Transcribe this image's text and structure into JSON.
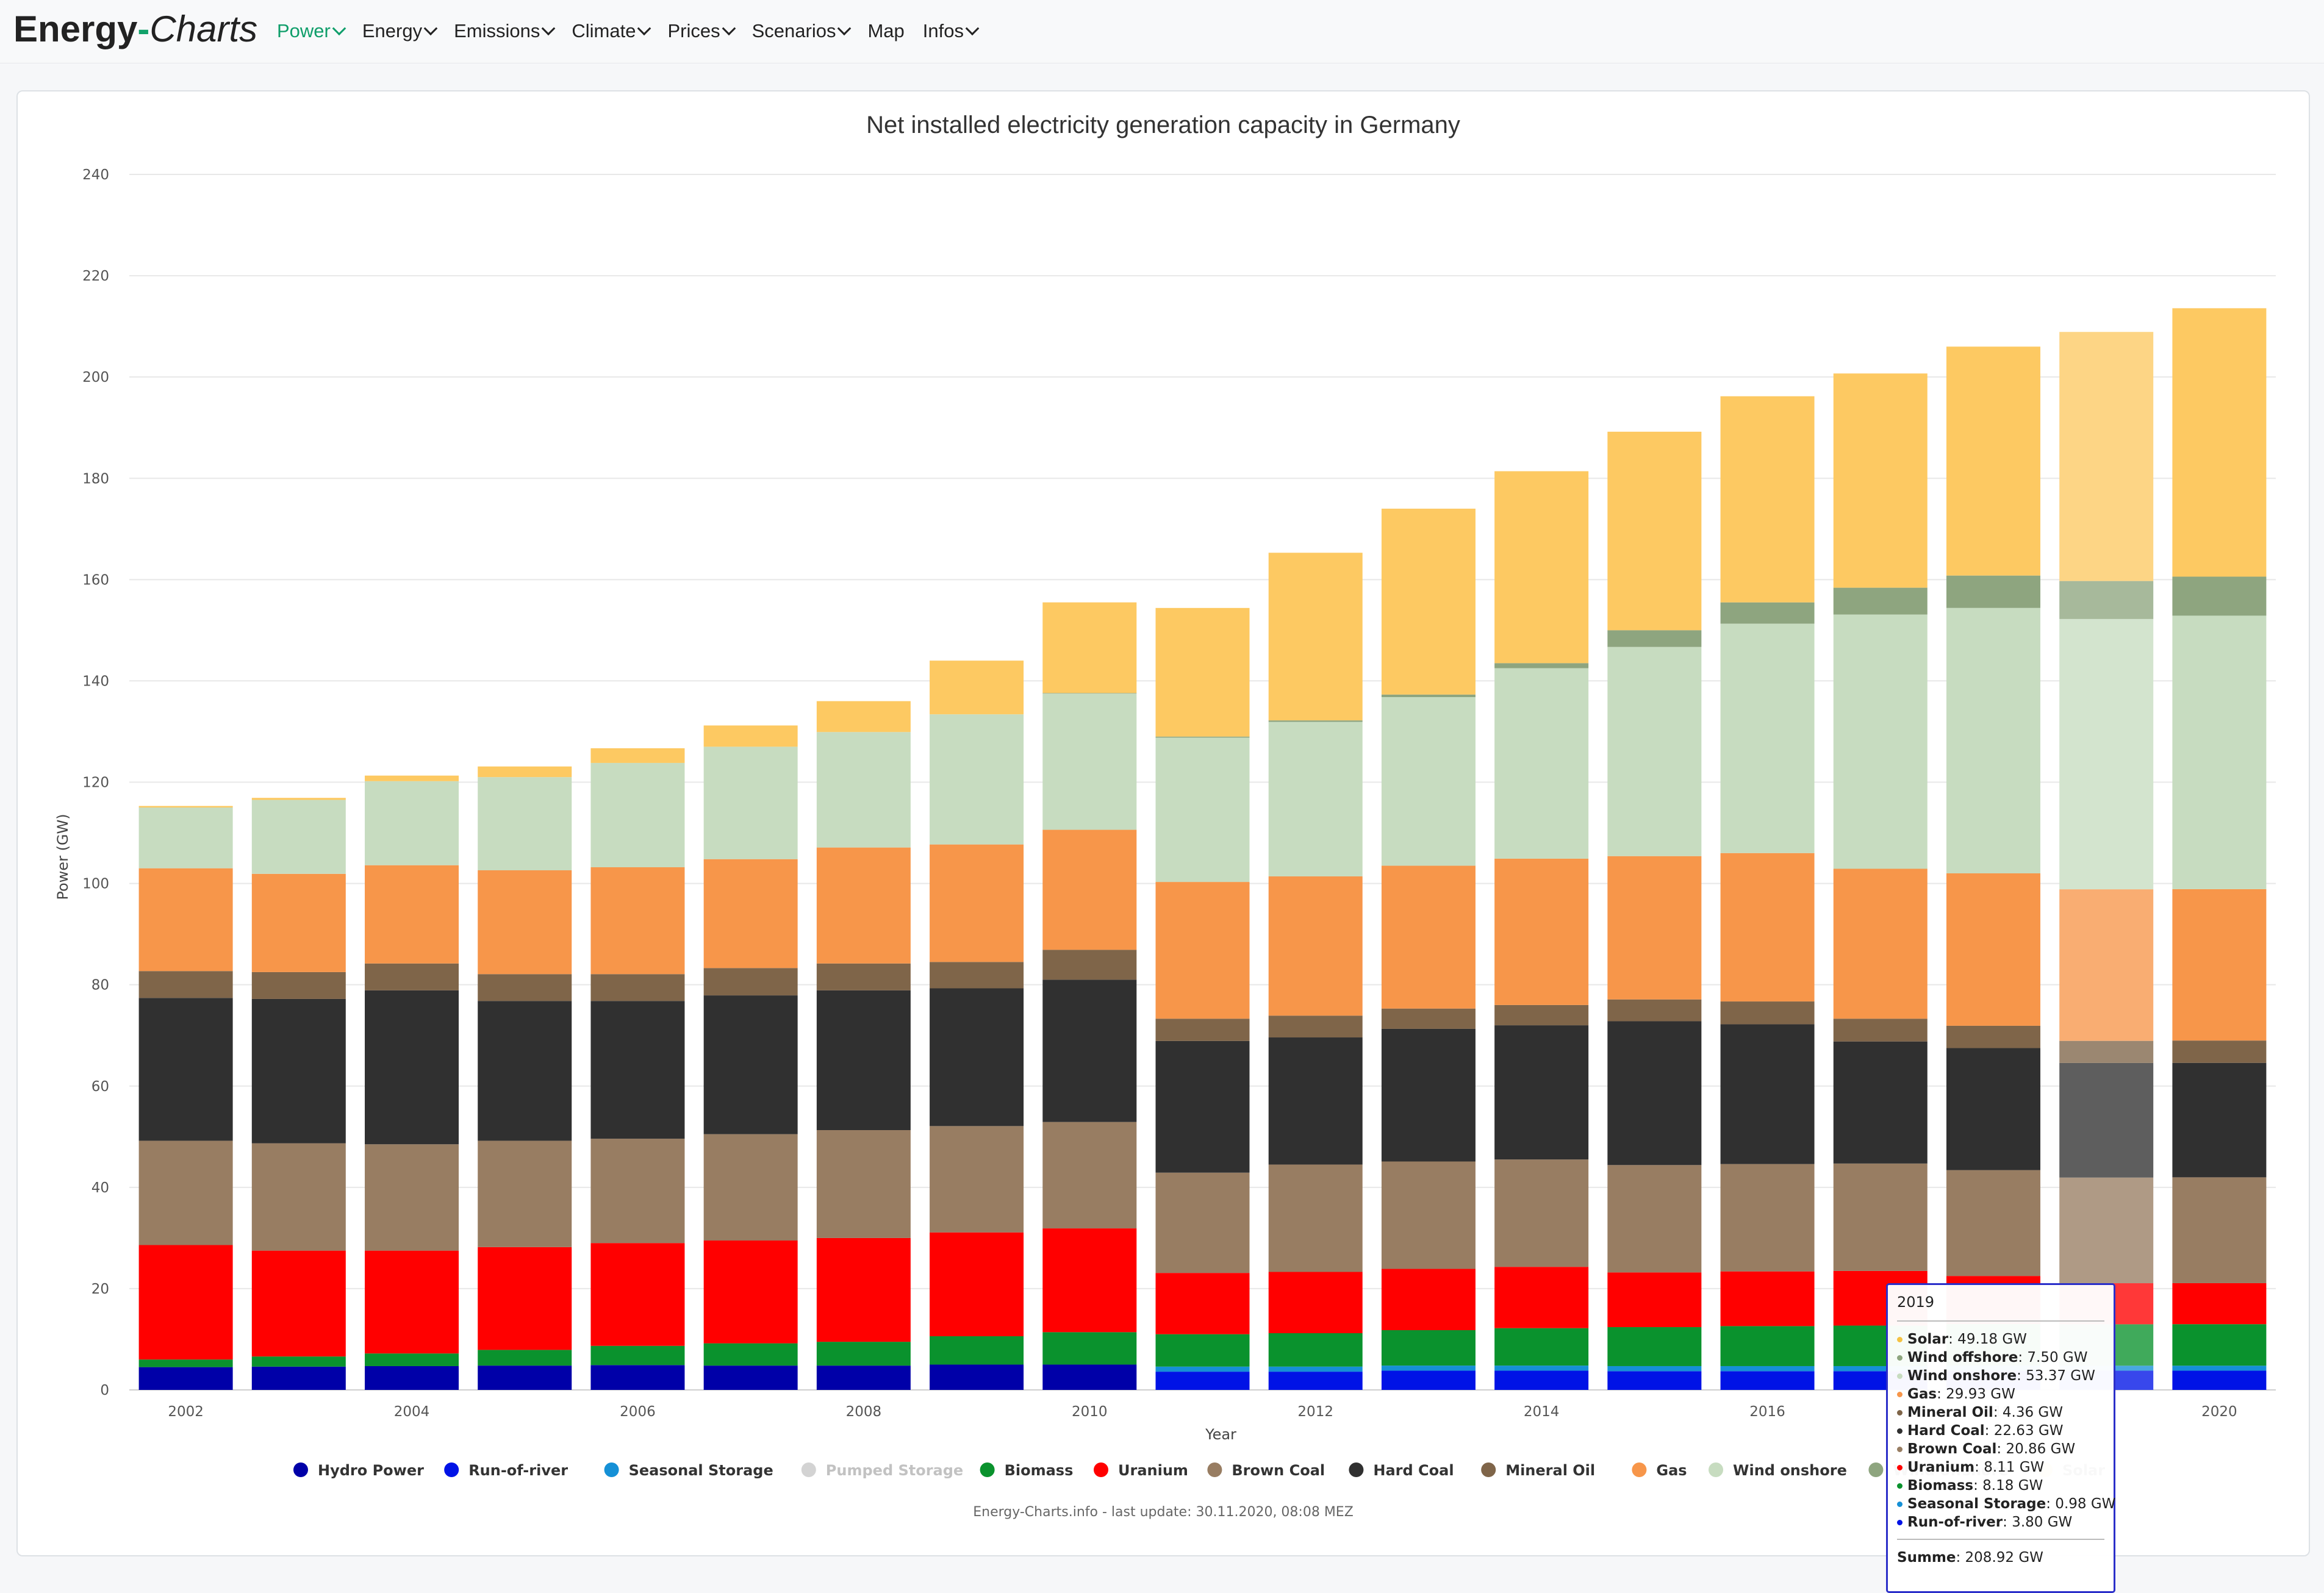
{
  "navbar": {
    "logo_energy": "Energy",
    "logo_dash": "-",
    "logo_charts": "Charts",
    "items": [
      {
        "label": "Power",
        "active": true
      },
      {
        "label": "Energy"
      },
      {
        "label": "Emissions"
      },
      {
        "label": "Climate"
      },
      {
        "label": "Prices"
      },
      {
        "label": "Scenarios"
      },
      {
        "label": "Map",
        "nochev": true
      },
      {
        "label": "Infos"
      }
    ]
  },
  "footer": "Energy-Charts.info - last update: 30.11.2020, 08:08 MEZ",
  "tooltip": {
    "year": "2019",
    "rows": [
      {
        "label": "Solar",
        "value": ": 49.18 GW",
        "color": "#f5c242"
      },
      {
        "label": "Wind offshore",
        "value": ": 7.50 GW",
        "color": "#8ea57f"
      },
      {
        "label": "Wind onshore",
        "value": ": 53.37 GW",
        "color": "#c7dcc0"
      },
      {
        "label": "Gas",
        "value": ": 29.93 GW",
        "color": "#f7964a"
      },
      {
        "label": "Mineral Oil",
        "value": ": 4.36 GW",
        "color": "#7f6549"
      },
      {
        "label": "Hard Coal",
        "value": ": 22.63 GW",
        "color": "#303030"
      },
      {
        "label": "Brown Coal",
        "value": ": 20.86 GW",
        "color": "#987d62"
      },
      {
        "label": "Uranium",
        "value": ": 8.11 GW",
        "color": "#ff0000"
      },
      {
        "label": "Biomass",
        "value": ": 8.18 GW",
        "color": "#0a922d"
      },
      {
        "label": "Seasonal Storage",
        "value": ": 0.98 GW",
        "color": "#1590d6"
      },
      {
        "label": "Run-of-river",
        "value": ": 3.80 GW",
        "color": "#0013e6"
      }
    ],
    "sum_label": "Summe",
    "sum_value": ": 208.92 GW"
  },
  "chart_data": {
    "type": "bar",
    "stacked": true,
    "title": "Net installed electricity generation capacity in Germany",
    "xlabel": "Year",
    "ylabel": "Power (GW)",
    "ylim": [
      0,
      240
    ],
    "yticks": [
      0,
      20,
      40,
      60,
      80,
      100,
      120,
      140,
      160,
      180,
      200,
      220,
      240
    ],
    "categories": [
      "2002",
      "2003",
      "2004",
      "2005",
      "2006",
      "2007",
      "2008",
      "2009",
      "2010",
      "2011",
      "2012",
      "2013",
      "2014",
      "2015",
      "2016",
      "2017",
      "2018",
      "2019",
      "2020"
    ],
    "xtick_labels": [
      "2002",
      "",
      "2004",
      "",
      "2006",
      "",
      "2008",
      "",
      "2010",
      "",
      "2012",
      "",
      "2014",
      "",
      "2016",
      "",
      "2018",
      "",
      "2020"
    ],
    "highlight_index": 17,
    "series": [
      {
        "name": "Hydro Power",
        "color": "#0000a8",
        "values": [
          4.5,
          4.6,
          4.7,
          4.8,
          4.9,
          4.8,
          4.8,
          5.0,
          5.0,
          0,
          0,
          0,
          0,
          0,
          0,
          0,
          0,
          0,
          0
        ]
      },
      {
        "name": "Run-of-river",
        "color": "#0013e6",
        "values": [
          0,
          0,
          0,
          0,
          0,
          0,
          0,
          0,
          0,
          3.6,
          3.6,
          3.8,
          3.8,
          3.7,
          3.7,
          3.7,
          3.8,
          3.8,
          3.8
        ]
      },
      {
        "name": "Seasonal Storage",
        "color": "#1590d6",
        "values": [
          0,
          0,
          0,
          0,
          0,
          0,
          0,
          0,
          0,
          1.0,
          1.0,
          1.0,
          1.0,
          1.0,
          1.0,
          1.0,
          1.0,
          0.98,
          0.98
        ]
      },
      {
        "name": "Pumped Storage",
        "color": "#d3d3d3",
        "hidden": true,
        "values": [
          0,
          0,
          0,
          0,
          0,
          0,
          0,
          0,
          0,
          0,
          0,
          0,
          0,
          0,
          0,
          0,
          0,
          0,
          0
        ]
      },
      {
        "name": "Biomass",
        "color": "#0a922d",
        "values": [
          1.5,
          2.0,
          2.5,
          3.1,
          3.8,
          4.4,
          4.7,
          5.6,
          6.4,
          6.4,
          6.6,
          7.0,
          7.4,
          7.7,
          7.9,
          8.0,
          8.2,
          8.18,
          8.2
        ]
      },
      {
        "name": "Uranium",
        "color": "#ff0000",
        "values": [
          22.6,
          20.9,
          20.3,
          20.3,
          20.3,
          20.3,
          20.5,
          20.5,
          20.5,
          12.1,
          12.1,
          12.1,
          12.1,
          10.8,
          10.8,
          10.8,
          9.5,
          8.11,
          8.1
        ]
      },
      {
        "name": "Brown Coal",
        "color": "#987d62",
        "values": [
          20.6,
          21.2,
          21.0,
          21.0,
          20.6,
          21.0,
          21.3,
          21.0,
          21.0,
          19.8,
          21.2,
          21.2,
          21.2,
          21.2,
          21.2,
          21.2,
          20.9,
          20.86,
          20.9
        ]
      },
      {
        "name": "Hard Coal",
        "color": "#303030",
        "values": [
          28.2,
          28.5,
          30.4,
          27.6,
          27.2,
          27.4,
          27.6,
          27.2,
          28.1,
          26.0,
          25.1,
          26.2,
          26.5,
          28.4,
          27.6,
          24.1,
          24.1,
          22.63,
          22.6
        ]
      },
      {
        "name": "Mineral Oil",
        "color": "#7f6549",
        "values": [
          5.3,
          5.3,
          5.3,
          5.3,
          5.3,
          5.4,
          5.3,
          5.2,
          5.9,
          4.4,
          4.3,
          4.0,
          4.0,
          4.3,
          4.5,
          4.5,
          4.4,
          4.36,
          4.4
        ]
      },
      {
        "name": "Gas",
        "color": "#f7964a",
        "values": [
          20.3,
          19.4,
          19.4,
          20.5,
          21.1,
          21.5,
          22.9,
          23.2,
          23.7,
          27.0,
          27.5,
          28.2,
          28.9,
          28.3,
          29.3,
          29.6,
          30.1,
          29.93,
          29.9
        ]
      },
      {
        "name": "Wind onshore",
        "color": "#c7dcc0",
        "values": [
          12.0,
          14.6,
          16.6,
          18.4,
          20.6,
          22.2,
          22.8,
          25.7,
          26.9,
          28.5,
          30.5,
          33.3,
          37.6,
          41.3,
          45.3,
          50.2,
          52.4,
          53.37,
          54.0
        ]
      },
      {
        "name": "Wind offshore",
        "color": "#8ea57f",
        "values": [
          0,
          0,
          0,
          0,
          0,
          0,
          0,
          0,
          0.1,
          0.2,
          0.3,
          0.5,
          1.0,
          3.3,
          4.2,
          5.3,
          6.4,
          7.5,
          7.7
        ]
      },
      {
        "name": "Solar",
        "color": "#fdc962",
        "values": [
          0.3,
          0.4,
          1.1,
          2.1,
          2.9,
          4.2,
          6.1,
          10.6,
          17.9,
          25.4,
          33.1,
          36.7,
          37.9,
          39.2,
          40.7,
          42.3,
          45.2,
          49.18,
          53.0
        ]
      }
    ]
  }
}
